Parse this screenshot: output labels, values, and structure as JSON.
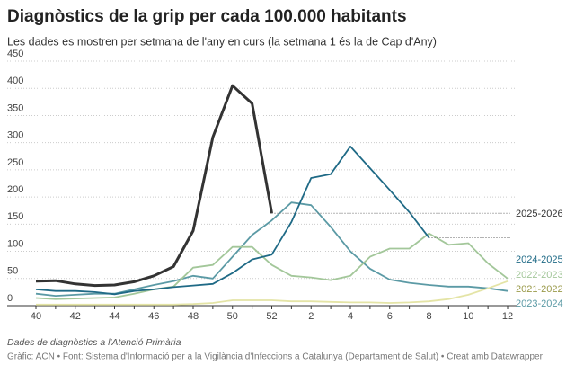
{
  "chart_data": {
    "type": "line",
    "title": "Diagnòstics de la grip per cada 100.000 habitants",
    "subtitle": "Les dades es mostren per setmana de l'any en curs (la setmana 1 és la de Cap d'Any)",
    "note": "Dades de diagnòstics a l'Atenció Primària",
    "source": "Gràfic: ACN • Font: Sistema d'Informació per a la Vigilància d'Infeccions a Catalunya (Departament de Salut) • Creat amb Datawrapper",
    "categories": [
      "40",
      null,
      "42",
      null,
      "44",
      null,
      "46",
      null,
      "48",
      null,
      "50",
      null,
      "52",
      null,
      "2",
      null,
      "4",
      null,
      "6",
      null,
      "8",
      null,
      "10",
      null,
      "12"
    ],
    "ylim": [
      0,
      450
    ],
    "yticks": [
      0,
      50,
      100,
      150,
      200,
      250,
      300,
      350,
      400,
      450
    ],
    "grid": true,
    "series": [
      {
        "name": "2025-2026",
        "color": "#333333",
        "values": [
          45,
          46,
          40,
          37,
          38,
          44,
          55,
          72,
          138,
          310,
          405,
          372,
          170,
          null,
          null,
          null,
          null,
          null,
          null,
          null,
          null,
          null,
          null,
          null,
          null
        ]
      },
      {
        "name": "2024-2025",
        "color": "#1f6a86",
        "values": [
          30,
          27,
          27,
          25,
          21,
          27,
          30,
          34,
          37,
          40,
          60,
          85,
          94,
          154,
          235,
          242,
          293,
          253,
          213,
          172,
          125,
          null,
          null,
          null,
          null
        ]
      },
      {
        "name": "2022-2023",
        "color": "#a3c79a",
        "values": [
          14,
          12,
          13,
          14,
          15,
          22,
          30,
          35,
          70,
          75,
          108,
          108,
          75,
          55,
          52,
          47,
          55,
          90,
          105,
          105,
          133,
          112,
          115,
          78,
          50
        ]
      },
      {
        "name": "2021-2022",
        "color": "#e4e4a6",
        "values": [
          2,
          2,
          2,
          2,
          2,
          2,
          2,
          2,
          3,
          5,
          10,
          10,
          10,
          8,
          8,
          7,
          6,
          6,
          5,
          6,
          8,
          12,
          20,
          32,
          45
        ]
      },
      {
        "name": "2023-2024",
        "color": "#5b9aa5",
        "values": [
          22,
          18,
          20,
          22,
          22,
          30,
          38,
          45,
          55,
          50,
          90,
          130,
          157,
          190,
          185,
          145,
          100,
          68,
          48,
          42,
          38,
          35,
          35,
          32,
          27
        ]
      }
    ]
  }
}
